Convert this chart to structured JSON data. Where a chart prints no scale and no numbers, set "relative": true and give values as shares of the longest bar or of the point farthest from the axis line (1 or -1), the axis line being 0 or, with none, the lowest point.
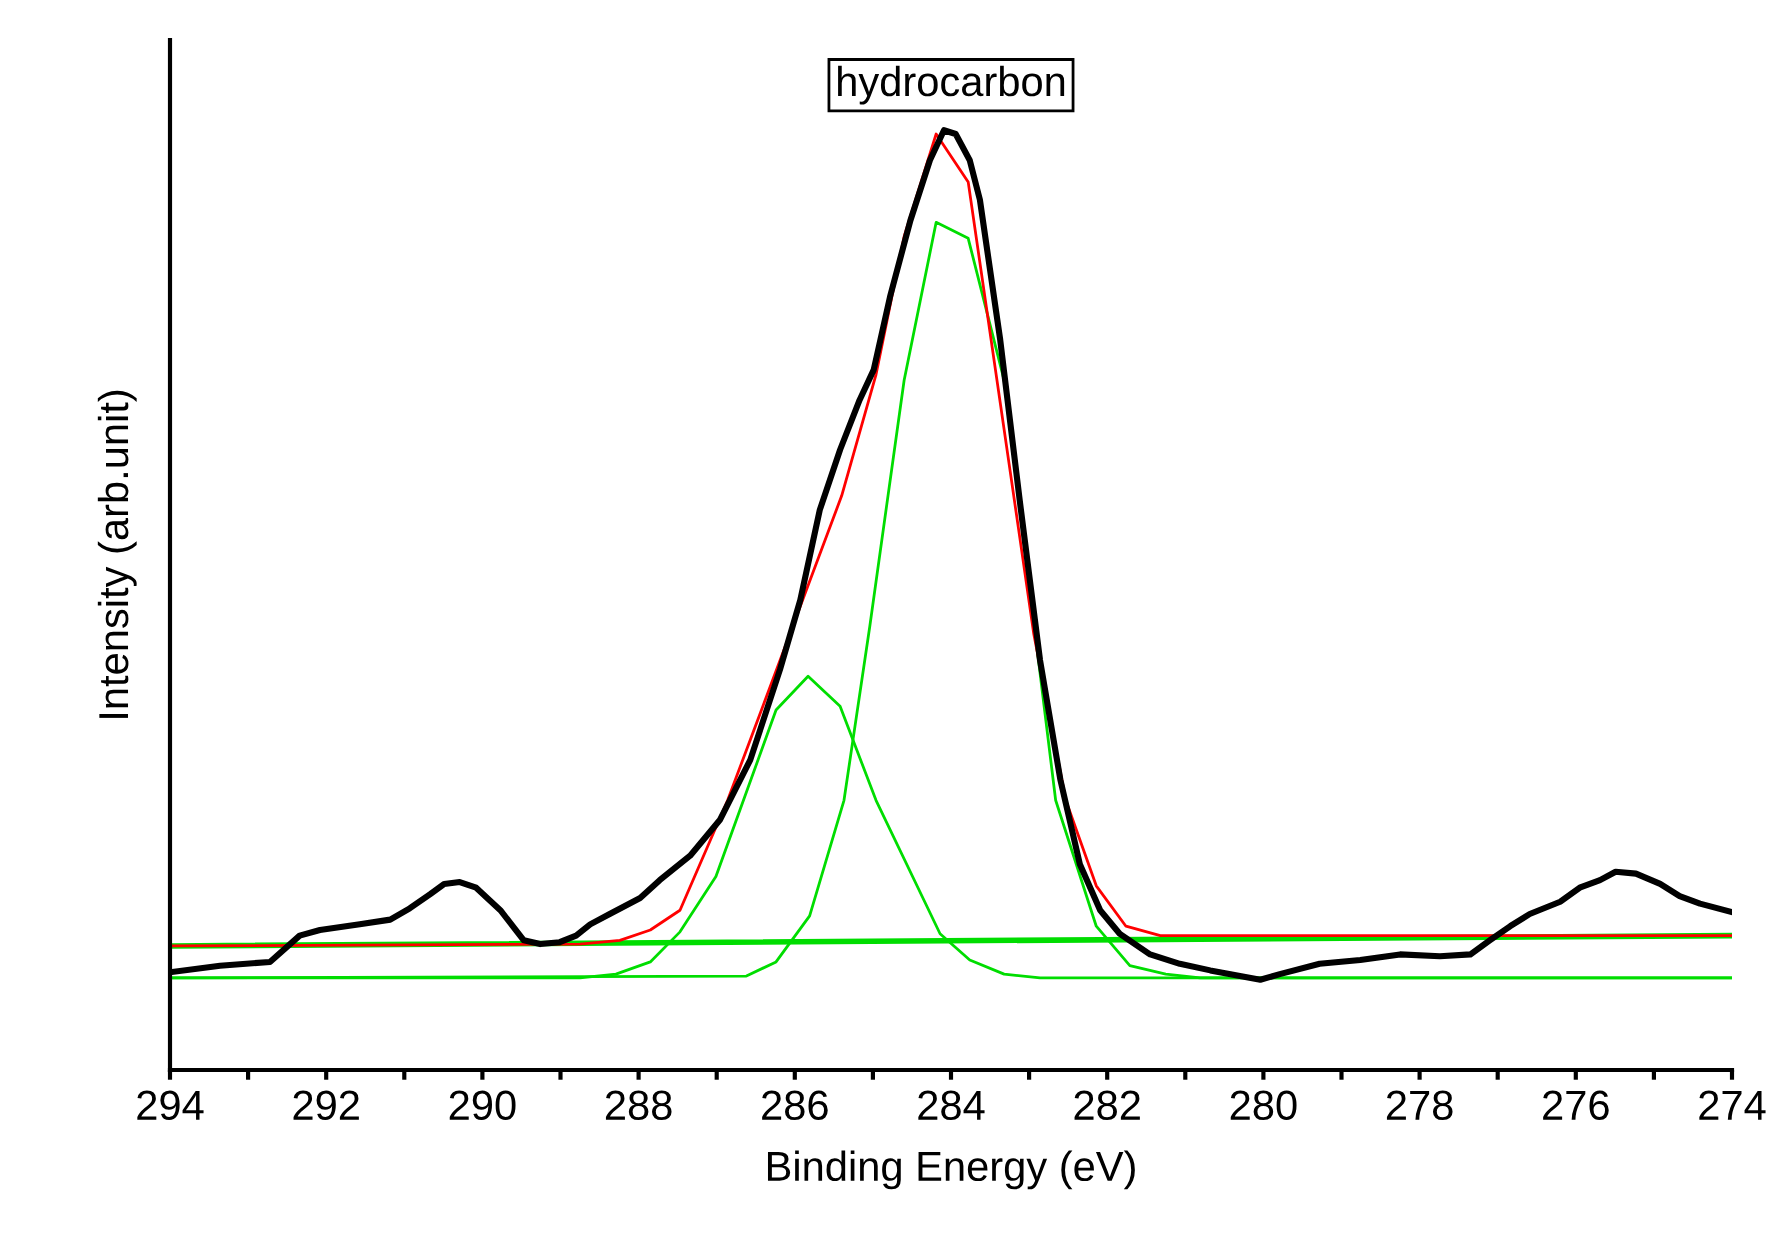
{
  "chart_data": {
    "type": "line",
    "title": "hydrocarbon",
    "xlabel": "Binding Energy (eV)",
    "ylabel": "Intensity (arb.unit)",
    "relative": true,
    "xlim": [
      294,
      274
    ],
    "xticks": [
      294,
      {
        "value": 293,
        "label": null
      },
      292,
      {
        "value": 291,
        "label": null
      },
      290,
      {
        "value": 289,
        "label": null
      },
      288,
      {
        "value": 287,
        "label": null
      },
      286,
      {
        "value": 285,
        "label": null
      },
      284,
      {
        "value": 283,
        "label": null
      },
      282,
      {
        "value": 281,
        "label": null
      },
      280,
      {
        "value": 279,
        "label": null
      },
      278,
      {
        "value": 277,
        "label": null
      },
      276,
      {
        "value": 275,
        "label": null
      },
      274
    ],
    "series": [
      {
        "color": "#00dd00",
        "x": [
          294,
          274
        ],
        "values": [
          0.132,
          0.143
        ]
      },
      {
        "color": "#00dd00",
        "x": [
          294,
          288.75,
          288.29,
          287.85,
          287.47,
          287.01,
          286.24,
          285.83,
          285.42,
          284.96,
          284.14,
          283.76,
          283.32,
          282.86,
          274
        ],
        "values": [
          0.098,
          0.098,
          0.102,
          0.115,
          0.147,
          0.206,
          0.383,
          0.419,
          0.387,
          0.287,
          0.145,
          0.117,
          0.102,
          0.098,
          0.098
        ]
      },
      {
        "color": "#00dd00",
        "x": [
          294,
          286.62,
          286.24,
          285.81,
          285.37,
          285.04,
          284.6,
          284.19,
          283.78,
          283.32,
          282.66,
          282.14,
          281.71,
          281.25,
          280.81,
          274
        ],
        "values": [
          0.098,
          0.1,
          0.115,
          0.164,
          0.287,
          0.472,
          0.734,
          0.902,
          0.885,
          0.734,
          0.287,
          0.153,
          0.111,
          0.102,
          0.098,
          0.098
        ]
      },
      {
        "color": "#ff0000",
        "x": [
          294,
          288.75,
          288.24,
          287.85,
          287.47,
          286.86,
          285.4,
          284.96,
          284.6,
          284.19,
          283.78,
          282.94,
          282.53,
          282.14,
          281.76,
          281.32,
          274
        ],
        "values": [
          0.132,
          0.134,
          0.138,
          0.149,
          0.17,
          0.287,
          0.611,
          0.74,
          0.887,
          0.996,
          0.945,
          0.464,
          0.287,
          0.196,
          0.153,
          0.143,
          0.143
        ]
      },
      {
        "color": "#000000",
        "x": [
          294,
          293.36,
          292.72,
          292.34,
          292.08,
          291.57,
          291.18,
          290.93,
          290.67,
          290.49,
          290.29,
          290.08,
          289.77,
          289.47,
          289.26,
          289.01,
          288.8,
          288.62,
          288.37,
          287.98,
          287.73,
          287.34,
          286.96,
          286.57,
          286.19,
          285.93,
          285.68,
          285.42,
          285.17,
          284.99,
          284.78,
          284.52,
          284.27,
          284.09,
          283.94,
          283.76,
          283.63,
          283.37,
          283.12,
          282.86,
          282.6,
          282.35,
          282.09,
          281.84,
          281.45,
          281.07,
          280.68,
          280.3,
          280.04,
          279.79,
          279.28,
          278.76,
          278.25,
          277.74,
          277.35,
          277.1,
          276.84,
          276.59,
          276.2,
          275.95,
          275.69,
          275.49,
          275.23,
          274.92,
          274.67,
          274.41,
          274
        ],
        "values": [
          0.104,
          0.111,
          0.115,
          0.143,
          0.149,
          0.155,
          0.16,
          0.172,
          0.187,
          0.198,
          0.2,
          0.194,
          0.17,
          0.138,
          0.134,
          0.136,
          0.143,
          0.155,
          0.166,
          0.183,
          0.202,
          0.228,
          0.266,
          0.33,
          0.426,
          0.5,
          0.596,
          0.66,
          0.713,
          0.745,
          0.823,
          0.904,
          0.968,
          1.0,
          0.996,
          0.968,
          0.926,
          0.777,
          0.606,
          0.436,
          0.309,
          0.219,
          0.17,
          0.145,
          0.123,
          0.113,
          0.106,
          0.1,
          0.096,
          0.102,
          0.113,
          0.117,
          0.123,
          0.121,
          0.123,
          0.138,
          0.153,
          0.166,
          0.179,
          0.194,
          0.202,
          0.211,
          0.209,
          0.198,
          0.185,
          0.177,
          0.168
        ]
      }
    ]
  }
}
